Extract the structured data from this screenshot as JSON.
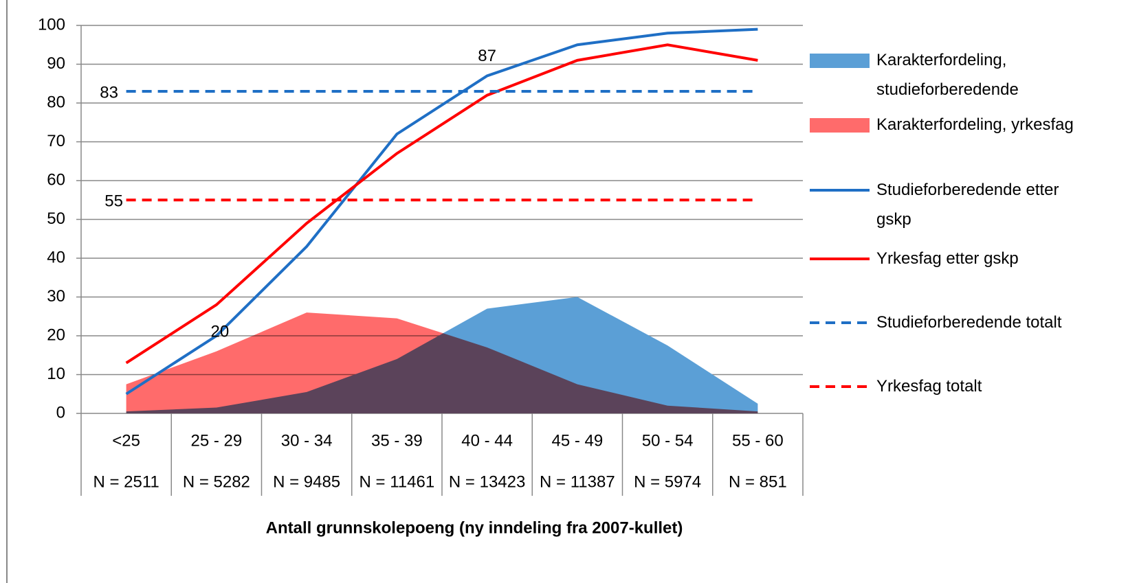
{
  "chart_data": {
    "type": "line",
    "xlabel": "Antall grunnskolepoeng (ny inndeling fra 2007-kullet)",
    "categories": [
      "<25",
      "25 - 29",
      "30 - 34",
      "35 - 39",
      "40 - 44",
      "45 - 49",
      "50 - 54",
      "55 - 60"
    ],
    "category_counts": [
      "N = 2511",
      "N = 5282",
      "N = 9485",
      "N = 11461",
      "N = 13423",
      "N = 11387",
      "N = 5974",
      "N = 851"
    ],
    "ylim": [
      0,
      100
    ],
    "yticks": [
      0,
      10,
      20,
      30,
      40,
      50,
      60,
      70,
      80,
      90,
      100
    ],
    "grid": true,
    "legend": "right",
    "series": [
      {
        "name": "Karakterfordeling, studieforberedende",
        "color": "#5b9fd6",
        "style": "area",
        "values": [
          0.5,
          1.5,
          5.5,
          14,
          27,
          30,
          17.5,
          2.5
        ]
      },
      {
        "name": "Karakterfordeling, yrkesfag",
        "color": "#ff6b6b",
        "style": "area",
        "values": [
          7.5,
          16,
          26,
          24.5,
          17,
          7.5,
          2,
          0.5
        ]
      },
      {
        "name": "Studieforberedende etter gskp",
        "color": "#1f6fc5",
        "style": "solid",
        "values": [
          5,
          20,
          43,
          72,
          87,
          95,
          98,
          99
        ]
      },
      {
        "name": "Yrkesfag etter gskp",
        "color": "#ff0000",
        "style": "solid",
        "values": [
          13,
          28,
          49,
          67,
          82,
          91,
          95,
          91
        ]
      },
      {
        "name": "Studieforberedende totalt",
        "color": "#1f6fc5",
        "style": "dashed",
        "values": [
          83,
          83,
          83,
          83,
          83,
          83,
          83,
          83
        ]
      },
      {
        "name": "Yrkesfag totalt",
        "color": "#ff0000",
        "style": "dashed",
        "values": [
          55,
          55,
          55,
          55,
          55,
          55,
          55,
          55
        ]
      }
    ]
  }
}
